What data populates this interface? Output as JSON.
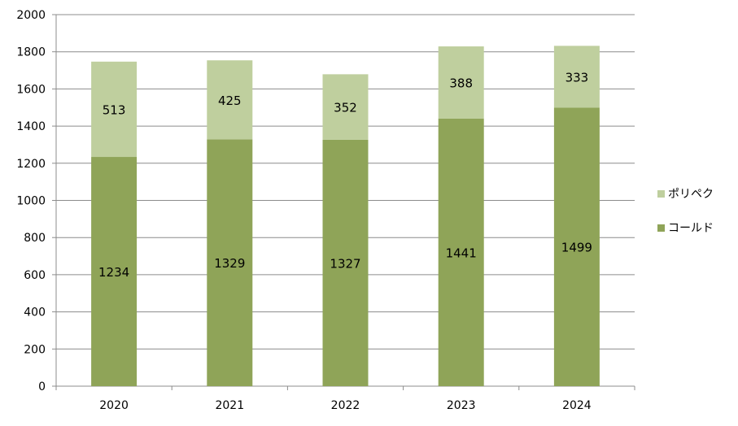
{
  "chart_data": {
    "type": "bar",
    "stacked": true,
    "categories": [
      "2020",
      "2021",
      "2022",
      "2023",
      "2024"
    ],
    "series": [
      {
        "name": "コールド",
        "values": [
          1234,
          1329,
          1327,
          1441,
          1499
        ],
        "color": "#8fa458"
      },
      {
        "name": "ポリペク",
        "values": [
          513,
          425,
          352,
          388,
          333
        ],
        "color": "#bfcf9e"
      }
    ],
    "ylim": [
      0,
      2000
    ],
    "yticks": [
      0,
      200,
      400,
      600,
      800,
      1000,
      1200,
      1400,
      1600,
      1800,
      2000
    ],
    "grid": true,
    "legend_position": "right"
  }
}
